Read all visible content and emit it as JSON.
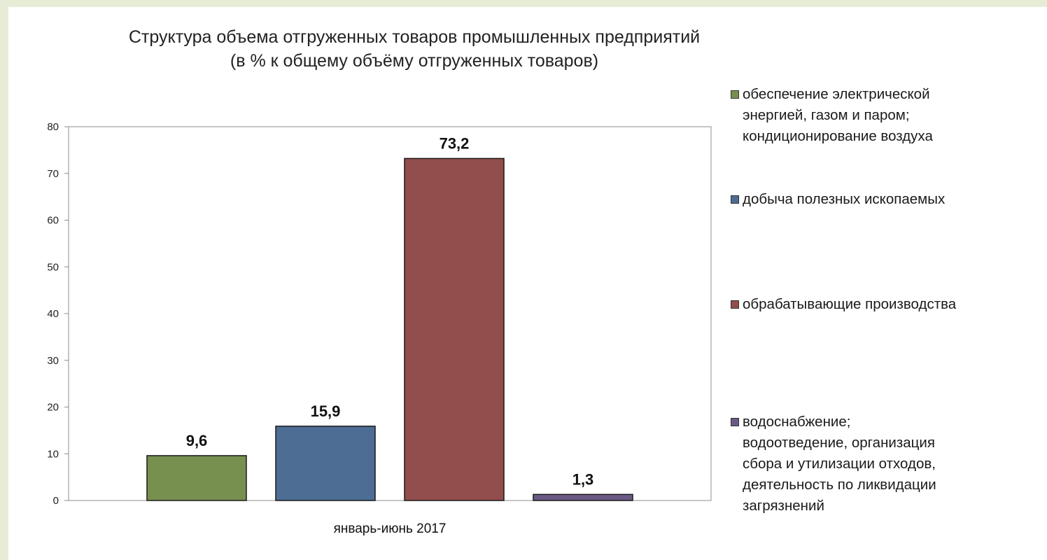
{
  "chart_data": {
    "type": "bar",
    "title": "Структура объема отгруженных товаров промышленных предприятий",
    "subtitle": "(в % к общему объёму отгруженных товаров)",
    "categories": [
      "январь-июнь 2017"
    ],
    "xlabel": "",
    "ylabel": "",
    "ylim": [
      0,
      80
    ],
    "yticks": [
      0,
      10,
      20,
      30,
      40,
      50,
      60,
      70,
      80
    ],
    "grid": false,
    "legend_position": "right",
    "series": [
      {
        "name": "обеспечение электрической\nэнергией, газом и паром;\nкондиционирование воздуха",
        "values": [
          9.6
        ],
        "label": "9,6",
        "color": "#77904f"
      },
      {
        "name": "добыча полезных ископаемых",
        "values": [
          15.9
        ],
        "label": "15,9",
        "color": "#4d6d94"
      },
      {
        "name": "обрабатывающие производства",
        "values": [
          73.2
        ],
        "label": "73,2",
        "color": "#924d4d"
      },
      {
        "name": "водоснабжение;\nводоотведение, организация\nсбора и утилизации отходов,\nдеятельность по ликвидации\nзагрязнений",
        "values": [
          1.3
        ],
        "label": "1,3",
        "color": "#6b5a86"
      }
    ]
  }
}
